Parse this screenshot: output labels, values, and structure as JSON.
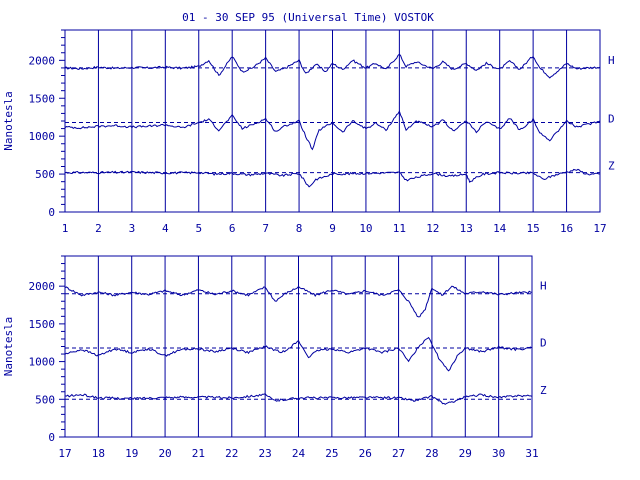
{
  "title": "01 - 30 SEP 95 (Universal Time) VOSTOK",
  "colors": {
    "ink": "#0000a0",
    "background": "#ffffff"
  },
  "chart_data": [
    {
      "type": "line",
      "ylabel": "Nanotesla",
      "xlim": [
        1,
        17
      ],
      "ylim": [
        0,
        2400
      ],
      "yticks": [
        0,
        500,
        1000,
        1500,
        2000
      ],
      "xticks": [
        1,
        2,
        3,
        4,
        5,
        6,
        7,
        8,
        9,
        10,
        11,
        12,
        13,
        14,
        15,
        16,
        17
      ],
      "grid": "vertical lines at each day",
      "series": [
        {
          "name": "H",
          "baseline": 1900,
          "dashed_reference": 1900,
          "x": [
            1,
            1.5,
            2,
            2.5,
            3,
            3.5,
            4,
            4.5,
            5,
            5.3,
            5.6,
            6,
            6.3,
            6.6,
            7,
            7.3,
            7.6,
            8,
            8.2,
            8.5,
            8.8,
            9,
            9.3,
            9.6,
            10,
            10.3,
            10.6,
            11,
            11.2,
            11.5,
            12,
            12.3,
            12.6,
            13,
            13.3,
            13.6,
            14,
            14.3,
            14.6,
            15,
            15.2,
            15.5,
            15.8,
            16,
            16.3,
            16.6,
            17
          ],
          "values": [
            1900,
            1890,
            1910,
            1895,
            1905,
            1900,
            1910,
            1895,
            1920,
            2000,
            1800,
            2050,
            1850,
            1900,
            2030,
            1850,
            1900,
            2000,
            1820,
            1950,
            1850,
            1960,
            1880,
            2000,
            1900,
            1960,
            1880,
            2080,
            1920,
            1980,
            1890,
            1980,
            1880,
            1960,
            1870,
            1960,
            1880,
            1990,
            1880,
            2060,
            1900,
            1780,
            1880,
            1960,
            1890,
            1900,
            1910
          ]
        },
        {
          "name": "D",
          "baseline": 1130,
          "dashed_reference": 1180,
          "x": [
            1,
            1.5,
            2,
            2.5,
            3,
            3.5,
            4,
            4.5,
            5,
            5.3,
            5.6,
            6,
            6.3,
            6.6,
            7,
            7.3,
            7.6,
            8,
            8.2,
            8.4,
            8.6,
            9,
            9.3,
            9.6,
            10,
            10.3,
            10.6,
            11,
            11.2,
            11.5,
            12,
            12.3,
            12.6,
            13,
            13.3,
            13.6,
            14,
            14.3,
            14.6,
            15,
            15.2,
            15.5,
            15.8,
            16,
            16.3,
            16.6,
            17
          ],
          "values": [
            1120,
            1110,
            1130,
            1140,
            1120,
            1130,
            1150,
            1110,
            1180,
            1220,
            1080,
            1270,
            1100,
            1150,
            1230,
            1060,
            1140,
            1200,
            1000,
            820,
            1080,
            1180,
            1050,
            1200,
            1100,
            1170,
            1080,
            1330,
            1080,
            1200,
            1120,
            1210,
            1070,
            1200,
            1060,
            1190,
            1090,
            1240,
            1080,
            1220,
            1040,
            950,
            1100,
            1200,
            1120,
            1150,
            1200
          ]
        },
        {
          "name": "Z",
          "baseline": 510,
          "dashed_reference": 520,
          "x": [
            1,
            2,
            3,
            4,
            5,
            5.5,
            6,
            6.5,
            7,
            7.5,
            8,
            8.3,
            8.5,
            8.8,
            9,
            10,
            11,
            11.2,
            12,
            12.5,
            13,
            13.1,
            13.5,
            14,
            14.5,
            15,
            15.3,
            15.6,
            16,
            16.3,
            16.6,
            17
          ],
          "values": [
            520,
            520,
            525,
            515,
            520,
            500,
            510,
            490,
            510,
            480,
            510,
            330,
            430,
            470,
            500,
            510,
            520,
            420,
            510,
            470,
            500,
            400,
            500,
            520,
            510,
            515,
            430,
            480,
            530,
            560,
            500,
            500
          ]
        }
      ]
    },
    {
      "type": "line",
      "ylabel": "Nanotesla",
      "xlim": [
        17,
        31
      ],
      "ylim": [
        0,
        2400
      ],
      "yticks": [
        0,
        500,
        1000,
        1500,
        2000
      ],
      "xticks": [
        17,
        18,
        19,
        20,
        21,
        22,
        23,
        24,
        25,
        26,
        27,
        28,
        29,
        30,
        31
      ],
      "grid": "vertical lines at each day",
      "series": [
        {
          "name": "H",
          "baseline": 1900,
          "dashed_reference": 1900,
          "x": [
            17,
            17.5,
            18,
            18.5,
            19,
            19.5,
            20,
            20.5,
            21,
            21.5,
            22,
            22.5,
            23,
            23.3,
            23.6,
            24,
            24.5,
            25,
            25.5,
            26,
            26.5,
            27,
            27.3,
            27.6,
            27.8,
            28,
            28.3,
            28.6,
            29,
            29.5,
            30,
            30.5,
            31
          ],
          "values": [
            1990,
            1880,
            1920,
            1880,
            1920,
            1890,
            1940,
            1880,
            1950,
            1890,
            1940,
            1880,
            1990,
            1800,
            1900,
            1990,
            1880,
            1950,
            1890,
            1940,
            1880,
            1950,
            1800,
            1580,
            1700,
            1980,
            1880,
            2000,
            1900,
            1930,
            1890,
            1910,
            1920
          ]
        },
        {
          "name": "D",
          "baseline": 1150,
          "dashed_reference": 1180,
          "x": [
            17,
            17.5,
            18,
            18.5,
            19,
            19.5,
            20,
            20.5,
            21,
            21.5,
            22,
            22.5,
            23,
            23.5,
            24,
            24.3,
            24.6,
            25,
            25.5,
            26,
            26.5,
            27,
            27.3,
            27.6,
            27.9,
            28.2,
            28.5,
            28.8,
            29,
            29.5,
            30,
            30.5,
            31
          ],
          "values": [
            1100,
            1160,
            1080,
            1170,
            1120,
            1170,
            1080,
            1160,
            1170,
            1130,
            1180,
            1120,
            1200,
            1120,
            1270,
            1060,
            1150,
            1170,
            1120,
            1180,
            1120,
            1180,
            1000,
            1200,
            1330,
            1050,
            880,
            1100,
            1180,
            1130,
            1190,
            1160,
            1180
          ]
        },
        {
          "name": "Z",
          "baseline": 520,
          "dashed_reference": 500,
          "x": [
            17,
            17.5,
            18,
            19,
            20,
            21,
            22,
            23,
            23.3,
            24,
            25,
            26,
            27,
            27.5,
            28,
            28.4,
            28.8,
            29,
            29.5,
            30,
            30.5,
            31
          ],
          "values": [
            540,
            560,
            520,
            510,
            525,
            530,
            520,
            560,
            480,
            520,
            520,
            525,
            520,
            480,
            540,
            430,
            500,
            530,
            560,
            520,
            550,
            540
          ]
        }
      ]
    }
  ]
}
